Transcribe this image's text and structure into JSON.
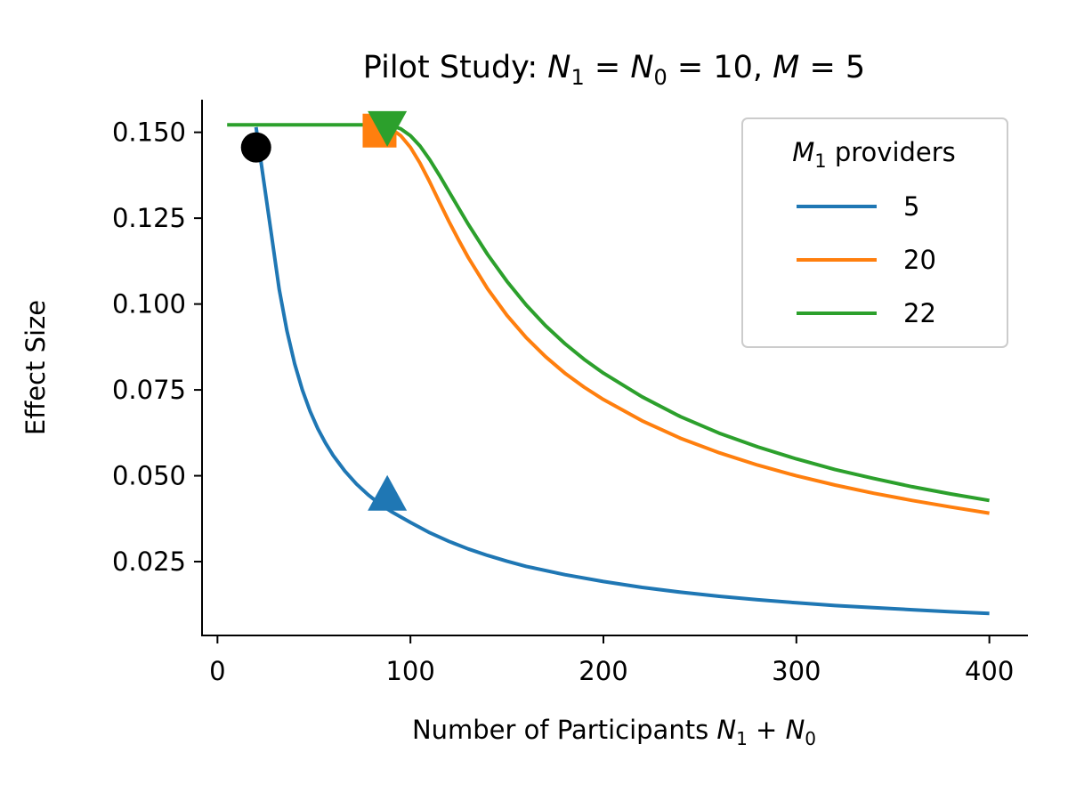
{
  "chart_data": {
    "type": "line",
    "title": "Pilot Study: N₁ = N₀ = 10, M = 5",
    "title_parts": {
      "prefix": "Pilot Study: ",
      "n1": "N",
      "n1_sub": "1",
      "eq1": " = ",
      "n0": "N",
      "n0_sub": "0",
      "eq2": " = 10, ",
      "m": "M",
      "eq3": " = 5"
    },
    "xlabel": "Number of Participants N₁ + N₀",
    "xlabel_parts": {
      "prefix": "Number of Participants ",
      "n1": "N",
      "n1_sub": "1",
      "plus": " + ",
      "n0": "N",
      "n0_sub": "0"
    },
    "ylabel": "Effect Size",
    "xlim": [
      -8,
      420
    ],
    "ylim": [
      0.0035,
      0.1595
    ],
    "xticks": [
      0,
      100,
      200,
      300,
      400
    ],
    "xtick_labels": [
      "0",
      "100",
      "200",
      "300",
      "400"
    ],
    "yticks": [
      0.025,
      0.05,
      0.075,
      0.1,
      0.125,
      0.15
    ],
    "ytick_labels": [
      "0.025",
      "0.050",
      "0.075",
      "0.100",
      "0.125",
      "0.150"
    ],
    "grid": false,
    "legend": {
      "title": "M₁ providers",
      "title_parts": {
        "m": "M",
        "m_sub": "1",
        "rest": " providers"
      },
      "position": "top-right"
    },
    "series": [
      {
        "name": "5",
        "color": "#1f77b4",
        "x": [
          20,
          24,
          28,
          32,
          36,
          40,
          44,
          48,
          52,
          56,
          60,
          66,
          72,
          78,
          84,
          90,
          100,
          110,
          120,
          130,
          140,
          150,
          160,
          180,
          200,
          220,
          240,
          260,
          280,
          300,
          320,
          340,
          360,
          380,
          400
        ],
        "y": [
          0.1515,
          0.1357,
          0.12,
          0.1043,
          0.0922,
          0.0826,
          0.075,
          0.0688,
          0.0637,
          0.0595,
          0.0559,
          0.0514,
          0.0476,
          0.0445,
          0.0418,
          0.0396,
          0.0364,
          0.0334,
          0.0309,
          0.0287,
          0.0268,
          0.0251,
          0.0236,
          0.0212,
          0.0192,
          0.0175,
          0.0161,
          0.0149,
          0.0139,
          0.013,
          0.0122,
          0.0116,
          0.011,
          0.0104,
          0.0099
        ]
      },
      {
        "name": "20",
        "color": "#ff7f0e",
        "x": [
          85,
          90,
          95,
          100,
          105,
          110,
          115,
          120,
          125,
          130,
          140,
          150,
          160,
          170,
          180,
          190,
          200,
          220,
          240,
          260,
          280,
          300,
          320,
          340,
          360,
          380,
          400
        ],
        "y": [
          0.1515,
          0.151,
          0.149,
          0.1456,
          0.141,
          0.1355,
          0.1297,
          0.124,
          0.1186,
          0.1135,
          0.1044,
          0.0967,
          0.0902,
          0.0847,
          0.0799,
          0.0758,
          0.0722,
          0.066,
          0.0609,
          0.0567,
          0.0531,
          0.05,
          0.0473,
          0.0449,
          0.0428,
          0.0409,
          0.0391
        ]
      },
      {
        "name": "22",
        "color": "#2ca02c",
        "x": [
          5,
          20,
          40,
          60,
          85,
          90,
          95,
          100,
          105,
          110,
          115,
          120,
          125,
          130,
          140,
          150,
          160,
          170,
          180,
          190,
          200,
          220,
          240,
          260,
          280,
          300,
          320,
          340,
          360,
          380,
          400
        ],
        "y": [
          0.1522,
          0.1522,
          0.1522,
          0.1522,
          0.1522,
          0.152,
          0.151,
          0.149,
          0.146,
          0.142,
          0.1375,
          0.1327,
          0.1279,
          0.1232,
          0.1144,
          0.1066,
          0.0997,
          0.0937,
          0.0885,
          0.0839,
          0.0799,
          0.073,
          0.0672,
          0.0624,
          0.0584,
          0.0549,
          0.0518,
          0.0492,
          0.0468,
          0.0447,
          0.0428
        ]
      }
    ],
    "markers": [
      {
        "name": "pilot-point",
        "shape": "circle",
        "x": 20,
        "y": 0.1456,
        "color": "#000000"
      },
      {
        "name": "m1-5-marker",
        "shape": "triangle-up",
        "x": 88,
        "y": 0.0445,
        "color": "#1f77b4"
      },
      {
        "name": "m1-20-marker",
        "shape": "square",
        "x": 84,
        "y": 0.1505,
        "color": "#ff7f0e"
      },
      {
        "name": "m1-22-marker",
        "shape": "triangle-down",
        "x": 88,
        "y": 0.1515,
        "color": "#2ca02c"
      }
    ]
  }
}
